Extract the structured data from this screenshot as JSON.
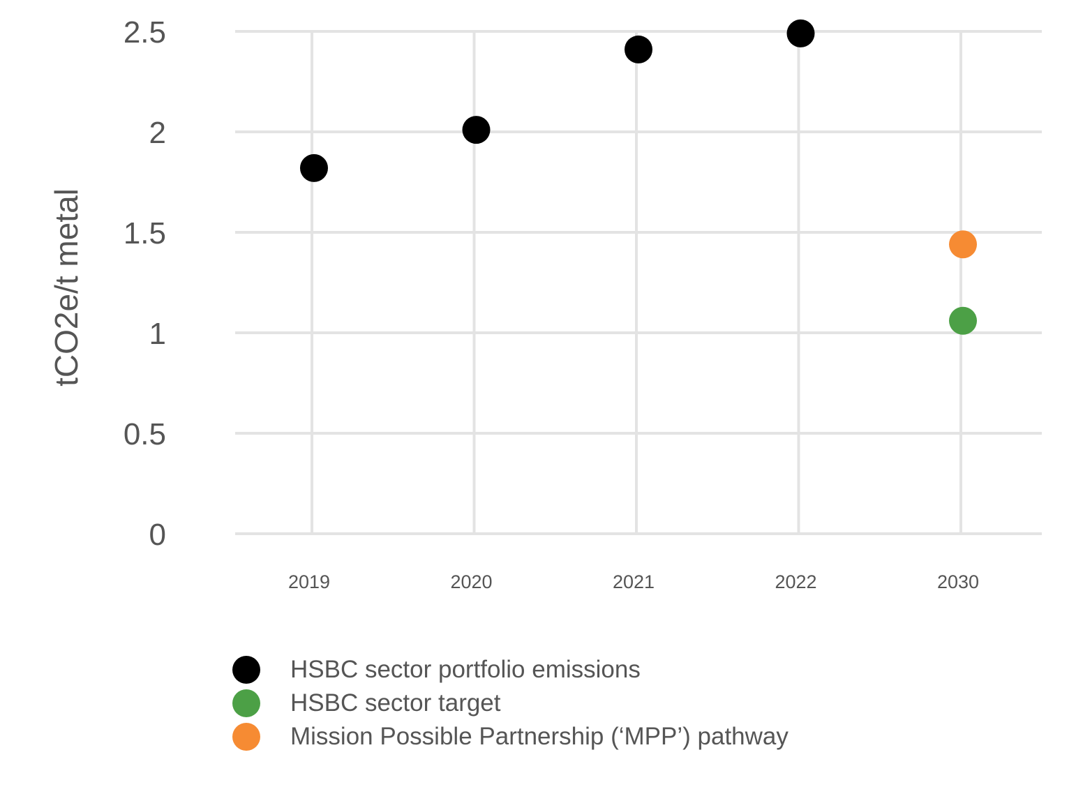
{
  "chart_data": {
    "type": "scatter",
    "ylabel": "tCO2e/t metal",
    "xlabel": "",
    "categories": [
      "2019",
      "2020",
      "2021",
      "2022",
      "2030"
    ],
    "ylim": [
      0,
      2.5
    ],
    "yticks": [
      "0",
      "0.5",
      "1",
      "1.5",
      "2",
      "2.5"
    ],
    "grid": true,
    "legend_position": "bottom-left",
    "series": [
      {
        "name": "HSBC sector portfolio emissions",
        "color": "#000000",
        "points": [
          {
            "x": "2019",
            "y": 1.82
          },
          {
            "x": "2020",
            "y": 2.01
          },
          {
            "x": "2021",
            "y": 2.41
          },
          {
            "x": "2022",
            "y": 2.49
          }
        ]
      },
      {
        "name": "HSBC sector target",
        "color": "#4ca046",
        "points": [
          {
            "x": "2030",
            "y": 1.06
          }
        ]
      },
      {
        "name": "Mission Possible Partnership (‘MPP’) pathway",
        "color": "#f68b33",
        "points": [
          {
            "x": "2030",
            "y": 1.44
          }
        ]
      }
    ]
  }
}
